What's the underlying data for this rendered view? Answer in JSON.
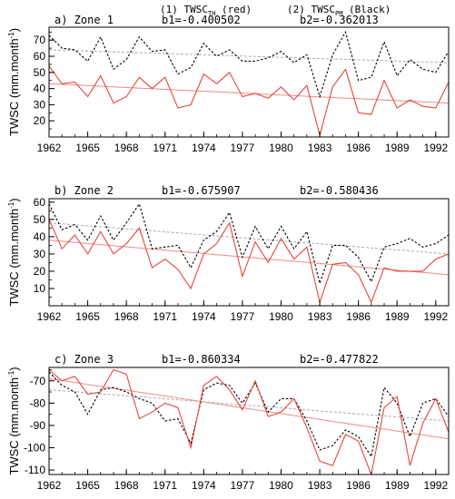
{
  "header": {
    "legend_red": "(1) TWSC",
    "legend_red_sub": "TH",
    "legend_red_suffix": " (red)",
    "legend_black": "(2) TWSC",
    "legend_black_sub": "PM",
    "legend_black_suffix": " (Black)"
  },
  "colors": {
    "red": "#e8453c",
    "trend_red": "#f08a84",
    "black": "#000000",
    "trend_black": "#aaaaaa"
  },
  "chart_data": [
    {
      "type": "line",
      "title": "a)  Zone 1",
      "b1_label": "b1=-0.400502",
      "b2_label": "b2=-0.362013",
      "ylabel": "TWSC (mm.month-1)",
      "ylabel_main": "TWSC (mm.month",
      "ylabel_sup": "-1",
      "ylabel_end": ")",
      "ylim": [
        10,
        78
      ],
      "yticks": [
        20,
        30,
        40,
        50,
        60,
        70
      ],
      "xlim": [
        1962,
        1993
      ],
      "xticks": [
        1962,
        1965,
        1968,
        1971,
        1974,
        1977,
        1980,
        1983,
        1986,
        1989,
        1992
      ],
      "x": [
        1962,
        1963,
        1964,
        1965,
        1966,
        1967,
        1968,
        1969,
        1970,
        1971,
        1972,
        1973,
        1974,
        1975,
        1976,
        1977,
        1978,
        1979,
        1980,
        1981,
        1982,
        1983,
        1984,
        1985,
        1986,
        1987,
        1988,
        1989,
        1990,
        1991,
        1992,
        1993
      ],
      "series": [
        {
          "name": "TWSC_TH",
          "style": "solid",
          "values": [
            54,
            43,
            44,
            35,
            48,
            31,
            35,
            47,
            40,
            47,
            28,
            30,
            49,
            43,
            50,
            35,
            37,
            34,
            41,
            33,
            42,
            11,
            41,
            52,
            25,
            24,
            45,
            28,
            33,
            29,
            28,
            44
          ]
        },
        {
          "name": "TWSC_PM",
          "style": "dashed",
          "values": [
            73,
            65,
            64,
            57,
            72,
            52,
            58,
            72,
            63,
            64,
            49,
            53,
            68,
            60,
            64,
            57,
            57,
            59,
            63,
            56,
            61,
            35,
            61,
            75,
            45,
            47,
            69,
            48,
            58,
            52,
            50,
            63
          ]
        }
      ],
      "trends": [
        {
          "series": "TWSC_TH",
          "start": 43,
          "end": 31
        },
        {
          "series": "TWSC_PM",
          "start": 64,
          "end": 56
        }
      ]
    },
    {
      "type": "line",
      "title": "b)  Zone 2",
      "b1_label": "b1=-0.675907",
      "b2_label": "b2=-0.580436",
      "ylabel": "TWSC (mm.month-1)",
      "ylabel_main": "TWSC (mm.month",
      "ylabel_sup": "-1",
      "ylabel_end": ")",
      "ylim": [
        0,
        62
      ],
      "yticks": [
        10,
        20,
        30,
        40,
        50,
        60
      ],
      "xlim": [
        1962,
        1993
      ],
      "xticks": [
        1962,
        1965,
        1968,
        1971,
        1974,
        1977,
        1980,
        1983,
        1986,
        1989,
        1992
      ],
      "x": [
        1962,
        1963,
        1964,
        1965,
        1966,
        1967,
        1968,
        1969,
        1970,
        1971,
        1972,
        1973,
        1974,
        1975,
        1976,
        1977,
        1978,
        1979,
        1980,
        1981,
        1982,
        1983,
        1984,
        1985,
        1986,
        1987,
        1988,
        1989,
        1990,
        1991,
        1992,
        1993
      ],
      "series": [
        {
          "name": "TWSC_TH",
          "style": "solid",
          "values": [
            50,
            33,
            41,
            30,
            43,
            30,
            36,
            45,
            22,
            27,
            21,
            10,
            30,
            36,
            48,
            17,
            37,
            25,
            39,
            27,
            34,
            2,
            24,
            25,
            18,
            2,
            22,
            20,
            20,
            20,
            27,
            30
          ]
        },
        {
          "name": "TWSC_PM",
          "style": "dashed",
          "values": [
            59,
            44,
            47,
            38,
            52,
            38,
            48,
            59,
            33,
            34,
            35,
            22,
            38,
            43,
            54,
            28,
            46,
            33,
            46,
            33,
            43,
            13,
            35,
            35,
            28,
            14,
            34,
            36,
            39,
            34,
            36,
            41
          ]
        }
      ],
      "trends": [
        {
          "series": "TWSC_TH",
          "start": 38,
          "end": 18
        },
        {
          "series": "TWSC_PM",
          "start": 48,
          "end": 30
        }
      ]
    },
    {
      "type": "line",
      "title": "c)  Zone 3",
      "b1_label": "b1=-0.860334",
      "b2_label": "b2=-0.477822",
      "ylabel": "TWSC (mm.month-1)",
      "ylabel_main": "TWSC (mm.month",
      "ylabel_sup": "-1",
      "ylabel_end": ")",
      "ylim": [
        -112,
        -64
      ],
      "yticks": [
        -110,
        -100,
        -90,
        -80,
        -70
      ],
      "xlim": [
        1962,
        1993
      ],
      "xticks": [
        1962,
        1965,
        1968,
        1971,
        1974,
        1977,
        1980,
        1983,
        1986,
        1989,
        1992
      ],
      "x": [
        1962,
        1963,
        1964,
        1965,
        1966,
        1967,
        1968,
        1969,
        1970,
        1971,
        1972,
        1973,
        1974,
        1975,
        1976,
        1977,
        1978,
        1979,
        1980,
        1981,
        1982,
        1983,
        1984,
        1985,
        1986,
        1987,
        1988,
        1989,
        1990,
        1991,
        1992,
        1993
      ],
      "series": [
        {
          "name": "TWSC_TH",
          "style": "solid",
          "values": [
            -65,
            -70,
            -68,
            -76,
            -75,
            -65,
            -67,
            -87,
            -84,
            -80,
            -82,
            -100,
            -72,
            -68,
            -74,
            -83,
            -70,
            -86,
            -84,
            -78,
            -91,
            -106,
            -108,
            -94,
            -97,
            -112,
            -82,
            -77,
            -108,
            -89,
            -78,
            -93
          ]
        },
        {
          "name": "TWSC_PM",
          "style": "dashed",
          "values": [
            -66,
            -72,
            -75,
            -85,
            -74,
            -73,
            -75,
            -78,
            -80,
            -88,
            -87,
            -98,
            -74,
            -71,
            -72,
            -80,
            -71,
            -84,
            -78,
            -78,
            -88,
            -101,
            -99,
            -92,
            -95,
            -104,
            -73,
            -80,
            -95,
            -80,
            -78,
            -86
          ]
        }
      ],
      "trends": [
        {
          "series": "TWSC_TH",
          "start": -69,
          "end": -96
        },
        {
          "series": "TWSC_PM",
          "start": -74,
          "end": -88
        }
      ]
    }
  ]
}
